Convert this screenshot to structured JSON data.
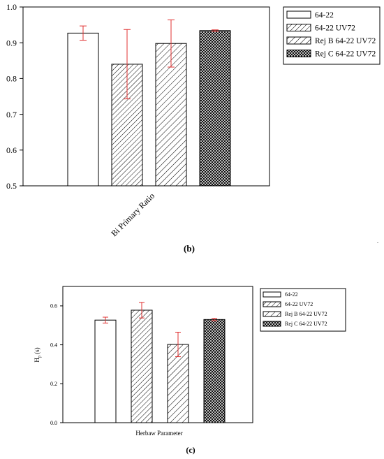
{
  "figure_b_caption": "(b)",
  "figure_c_caption": "(c)",
  "chart_data": [
    {
      "type": "bar",
      "categories": [
        "Bi Primary Ratio"
      ],
      "series": [
        {
          "name": "64-22",
          "values": [
            0.927
          ],
          "errors": [
            0.02
          ]
        },
        {
          "name": "64-22 UV72",
          "values": [
            0.84
          ],
          "errors": [
            0.097
          ]
        },
        {
          "name": "Rej B 64-22 UV72",
          "values": [
            0.898
          ],
          "errors": [
            0.066
          ]
        },
        {
          "name": "Rej C 64-22 UV72",
          "values": [
            0.934
          ],
          "errors": [
            0.002
          ]
        }
      ],
      "ylim": [
        0.5,
        1.0
      ],
      "yticks": [
        "0.5",
        "0.6",
        "0.7",
        "0.8",
        "0.9",
        "1.0"
      ],
      "title": "",
      "xlabel": "",
      "ylabel": "",
      "legend_position": "right",
      "grid": false
    },
    {
      "type": "bar",
      "categories": [
        "Herbaw Parameter"
      ],
      "series": [
        {
          "name": "64-22",
          "values": [
            0.527
          ],
          "errors": [
            0.015
          ]
        },
        {
          "name": "64-22 UV72",
          "values": [
            0.578
          ],
          "errors": [
            0.04
          ]
        },
        {
          "name": "Rej B 64-22 UV72",
          "values": [
            0.402
          ],
          "errors": [
            0.063
          ]
        },
        {
          "name": "Rej C 64-22 UV72",
          "values": [
            0.53
          ],
          "errors": [
            0.006
          ]
        }
      ],
      "ylim": [
        0.0,
        0.7
      ],
      "yticks": [
        "0.0",
        "0.2",
        "0.4",
        "0.6"
      ],
      "title": "",
      "xlabel": "Herbaw Parameter",
      "ylabel_main": "H",
      "ylabel_sub": "p",
      "ylabel_unit": "(s)",
      "legend_position": "right",
      "grid": false
    }
  ]
}
